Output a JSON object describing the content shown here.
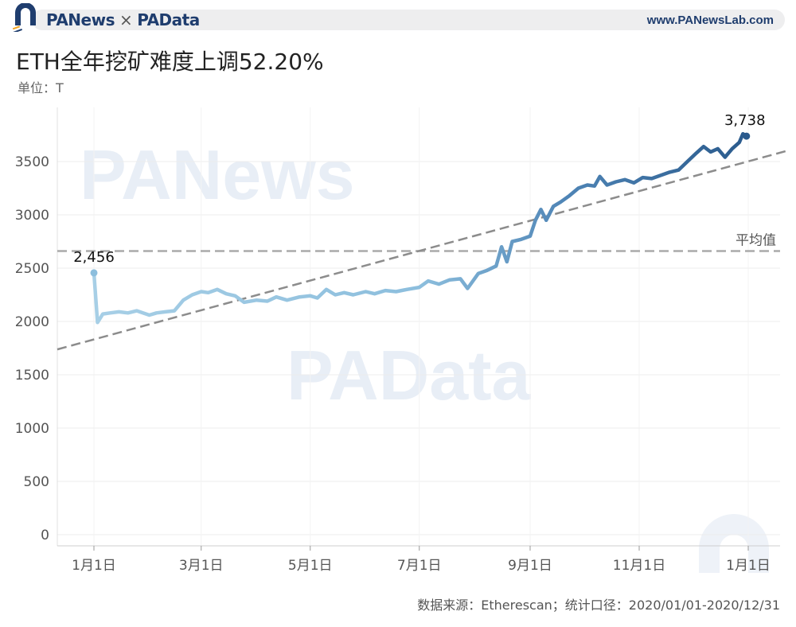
{
  "header": {
    "brand_left": "PANews",
    "brand_sep": "×",
    "brand_right": "PAData",
    "website": "www.PANewsLab.com"
  },
  "title": "ETH全年挖矿难度上调52.20%",
  "unit": "单位：T",
  "source": "数据来源：Etherescan；统计口径：2020/01/01-2020/12/31",
  "watermarks": [
    "PANews",
    "PAData"
  ],
  "colors": {
    "accent": "#1f3d6e",
    "series_light": "#9ecae1",
    "series_dark": "#2a5a8c",
    "trend": "#999999"
  },
  "chart_data": {
    "type": "line",
    "title": "ETH全年挖矿难度上调52.20%",
    "ylabel": "单位：T",
    "xlabel": "",
    "ylim": [
      0,
      3800
    ],
    "yticks": [
      0,
      500,
      1000,
      1500,
      2000,
      2500,
      3000,
      3500
    ],
    "xlim": [
      "2020-01-01",
      "2021-01-01"
    ],
    "xticks": [
      {
        "date": "2020-01-01",
        "label": "1月1日"
      },
      {
        "date": "2020-03-01",
        "label": "3月1日"
      },
      {
        "date": "2020-05-01",
        "label": "5月1日"
      },
      {
        "date": "2020-07-01",
        "label": "7月1日"
      },
      {
        "date": "2020-09-01",
        "label": "9月1日"
      },
      {
        "date": "2020-11-01",
        "label": "11月1日"
      },
      {
        "date": "2021-01-01",
        "label": "1月1日"
      }
    ],
    "grid": true,
    "series": [
      {
        "points": [
          [
            "2020-01-01",
            2456
          ],
          [
            "2020-01-03",
            1990
          ],
          [
            "2020-01-06",
            2070
          ],
          [
            "2020-01-10",
            2080
          ],
          [
            "2020-01-15",
            2090
          ],
          [
            "2020-01-20",
            2080
          ],
          [
            "2020-01-25",
            2100
          ],
          [
            "2020-02-01",
            2060
          ],
          [
            "2020-02-05",
            2080
          ],
          [
            "2020-02-10",
            2090
          ],
          [
            "2020-02-15",
            2100
          ],
          [
            "2020-02-20",
            2200
          ],
          [
            "2020-02-25",
            2250
          ],
          [
            "2020-03-01",
            2280
          ],
          [
            "2020-03-05",
            2270
          ],
          [
            "2020-03-10",
            2300
          ],
          [
            "2020-03-15",
            2260
          ],
          [
            "2020-03-20",
            2240
          ],
          [
            "2020-03-25",
            2180
          ],
          [
            "2020-04-01",
            2200
          ],
          [
            "2020-04-07",
            2190
          ],
          [
            "2020-04-12",
            2230
          ],
          [
            "2020-04-18",
            2200
          ],
          [
            "2020-04-25",
            2230
          ],
          [
            "2020-05-01",
            2240
          ],
          [
            "2020-05-05",
            2220
          ],
          [
            "2020-05-10",
            2300
          ],
          [
            "2020-05-15",
            2250
          ],
          [
            "2020-05-20",
            2270
          ],
          [
            "2020-05-25",
            2250
          ],
          [
            "2020-06-01",
            2280
          ],
          [
            "2020-06-06",
            2260
          ],
          [
            "2020-06-12",
            2290
          ],
          [
            "2020-06-18",
            2280
          ],
          [
            "2020-06-24",
            2300
          ],
          [
            "2020-07-01",
            2320
          ],
          [
            "2020-07-06",
            2380
          ],
          [
            "2020-07-12",
            2350
          ],
          [
            "2020-07-18",
            2390
          ],
          [
            "2020-07-24",
            2400
          ],
          [
            "2020-07-28",
            2310
          ],
          [
            "2020-08-03",
            2450
          ],
          [
            "2020-08-08",
            2480
          ],
          [
            "2020-08-13",
            2520
          ],
          [
            "2020-08-16",
            2700
          ],
          [
            "2020-08-19",
            2560
          ],
          [
            "2020-08-22",
            2750
          ],
          [
            "2020-08-27",
            2770
          ],
          [
            "2020-09-01",
            2800
          ],
          [
            "2020-09-04",
            2950
          ],
          [
            "2020-09-07",
            3050
          ],
          [
            "2020-09-10",
            2950
          ]
        ]
      },
      {
        "points": [
          [
            "2020-09-10",
            2950
          ],
          [
            "2020-09-14",
            3080
          ],
          [
            "2020-09-18",
            3120
          ],
          [
            "2020-09-23",
            3180
          ],
          [
            "2020-09-28",
            3250
          ],
          [
            "2020-10-03",
            3280
          ],
          [
            "2020-10-07",
            3270
          ],
          [
            "2020-10-10",
            3360
          ],
          [
            "2020-10-14",
            3280
          ],
          [
            "2020-10-19",
            3310
          ],
          [
            "2020-10-24",
            3330
          ],
          [
            "2020-10-29",
            3300
          ],
          [
            "2020-11-03",
            3350
          ],
          [
            "2020-11-08",
            3340
          ],
          [
            "2020-11-13",
            3370
          ],
          [
            "2020-11-18",
            3400
          ],
          [
            "2020-11-23",
            3420
          ],
          [
            "2020-11-28",
            3500
          ],
          [
            "2020-12-03",
            3580
          ],
          [
            "2020-12-07",
            3640
          ],
          [
            "2020-12-11",
            3590
          ],
          [
            "2020-12-15",
            3620
          ],
          [
            "2020-12-19",
            3540
          ],
          [
            "2020-12-23",
            3620
          ],
          [
            "2020-12-27",
            3680
          ],
          [
            "2020-12-29",
            3760
          ],
          [
            "2020-12-31",
            3738
          ]
        ]
      }
    ],
    "reference_lines": [
      {
        "name": "平均值",
        "value": 2660
      },
      {
        "from": [
          "2019-12-01",
          1690
        ],
        "to": [
          "2021-01-27",
          3620
        ]
      }
    ],
    "annotations": [
      {
        "date": "2020-01-01",
        "value": 2456,
        "text": "2,456"
      },
      {
        "date": "2020-12-31",
        "value": 3738,
        "text": "3,738"
      }
    ]
  }
}
